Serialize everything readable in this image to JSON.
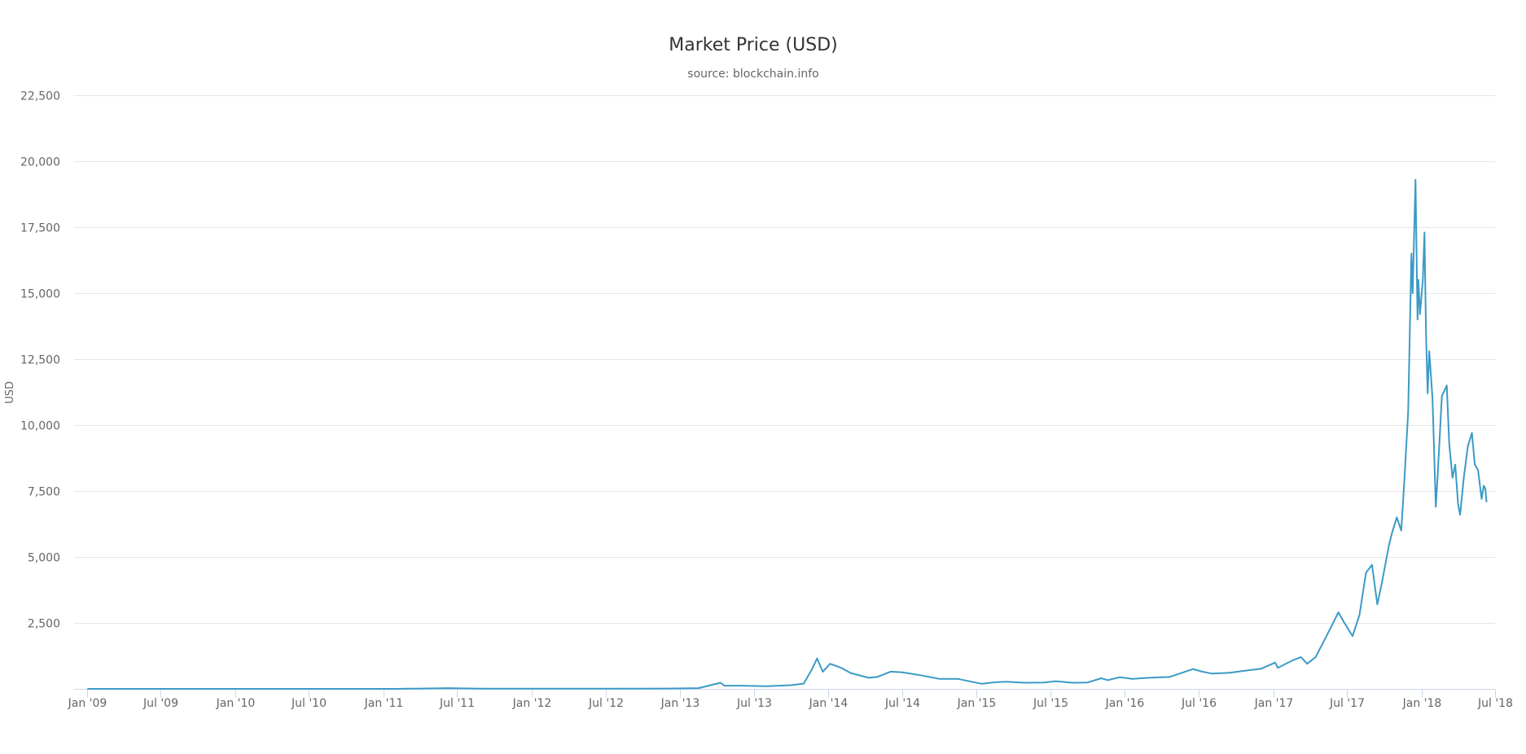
{
  "chart_data": {
    "type": "line",
    "title": "Market Price (USD)",
    "subtitle": "source: blockchain.info",
    "xlabel": "",
    "ylabel": "USD",
    "x_axis_type": "datetime",
    "xlim": [
      "2009-01-01",
      "2018-07-01"
    ],
    "ylim": [
      0,
      22500
    ],
    "y_ticks": [
      2500,
      5000,
      7500,
      10000,
      12500,
      15000,
      17500,
      20000,
      22500
    ],
    "y_tick_labels": [
      "2,500",
      "5,000",
      "7,500",
      "10,000",
      "12,500",
      "15,000",
      "17,500",
      "20,000",
      "22,500"
    ],
    "x_ticks": [
      "2009-01-01",
      "2009-07-01",
      "2010-01-01",
      "2010-07-01",
      "2011-01-01",
      "2011-07-01",
      "2012-01-01",
      "2012-07-01",
      "2013-01-01",
      "2013-07-01",
      "2014-01-01",
      "2014-07-01",
      "2015-01-01",
      "2015-07-01",
      "2016-01-01",
      "2016-07-01",
      "2017-01-01",
      "2017-07-01",
      "2018-01-01",
      "2018-07-01"
    ],
    "x_tick_labels": [
      "Jan '09",
      "Jul '09",
      "Jan '10",
      "Jul '10",
      "Jan '11",
      "Jul '11",
      "Jan '12",
      "Jul '12",
      "Jan '13",
      "Jul '13",
      "Jan '14",
      "Jul '14",
      "Jan '15",
      "Jul '15",
      "Jan '16",
      "Jul '16",
      "Jan '17",
      "Jul '17",
      "Jan '18",
      "Jul '18"
    ],
    "grid": true,
    "legend": false,
    "line_color": "#3b9ac6",
    "series": [
      {
        "x": [
          "2009-01-03",
          "2010-07-01",
          "2011-02-01",
          "2011-06-10",
          "2011-09-01",
          "2012-01-01",
          "2012-07-01",
          "2012-12-01",
          "2013-02-15",
          "2013-04-10",
          "2013-04-20",
          "2013-06-01",
          "2013-08-01",
          "2013-10-01",
          "2013-11-01",
          "2013-11-20",
          "2013-12-04",
          "2013-12-18",
          "2014-01-05",
          "2014-02-01",
          "2014-02-25",
          "2014-04-10",
          "2014-05-01",
          "2014-06-03",
          "2014-07-01",
          "2014-08-15",
          "2014-10-01",
          "2014-11-15",
          "2015-01-14",
          "2015-02-15",
          "2015-03-15",
          "2015-04-30",
          "2015-06-15",
          "2015-07-15",
          "2015-08-25",
          "2015-10-01",
          "2015-11-04",
          "2015-11-20",
          "2015-12-20",
          "2016-01-20",
          "2016-03-01",
          "2016-04-20",
          "2016-06-17",
          "2016-07-10",
          "2016-08-02",
          "2016-09-15",
          "2016-10-30",
          "2016-12-01",
          "2016-12-31",
          "2017-01-05",
          "2017-01-12",
          "2017-02-20",
          "2017-03-10",
          "2017-03-25",
          "2017-04-15",
          "2017-05-05",
          "2017-05-25",
          "2017-06-10",
          "2017-06-25",
          "2017-07-15",
          "2017-08-01",
          "2017-08-17",
          "2017-09-01",
          "2017-09-14",
          "2017-09-25",
          "2017-10-12",
          "2017-10-20",
          "2017-11-01",
          "2017-11-12",
          "2017-11-20",
          "2017-11-29",
          "2017-12-07",
          "2017-12-10",
          "2017-12-17",
          "2017-12-22",
          "2017-12-24",
          "2017-12-28",
          "2018-01-04",
          "2018-01-08",
          "2018-01-12",
          "2018-01-16",
          "2018-01-20",
          "2018-01-28",
          "2018-02-05",
          "2018-02-10",
          "2018-02-20",
          "2018-03-04",
          "2018-03-10",
          "2018-03-18",
          "2018-03-25",
          "2018-04-01",
          "2018-04-06",
          "2018-04-15",
          "2018-04-25",
          "2018-05-05",
          "2018-05-12",
          "2018-05-20",
          "2018-05-29",
          "2018-06-03",
          "2018-06-07",
          "2018-06-10"
        ],
        "y": [
          0,
          0.07,
          1,
          28,
          5,
          6,
          7,
          13,
          27,
          230,
          120,
          120,
          100,
          140,
          200,
          700,
          1150,
          650,
          950,
          800,
          600,
          420,
          450,
          650,
          630,
          520,
          380,
          380,
          190,
          250,
          270,
          230,
          240,
          290,
          230,
          240,
          400,
          330,
          440,
          380,
          420,
          450,
          750,
          650,
          580,
          610,
          700,
          760,
          960,
          1000,
          800,
          1100,
          1200,
          950,
          1200,
          1800,
          2400,
          2900,
          2500,
          2000,
          2800,
          4400,
          4700,
          3200,
          4000,
          5400,
          5900,
          6500,
          6000,
          8000,
          10500,
          16500,
          15000,
          19300,
          14000,
          15500,
          14200,
          15500,
          17300,
          13500,
          11200,
          12800,
          11000,
          6900,
          8200,
          11100,
          11500,
          9300,
          8000,
          8500,
          7000,
          6600,
          8000,
          9200,
          9700,
          8500,
          8300,
          7200,
          7700,
          7600,
          7100
        ]
      }
    ]
  }
}
